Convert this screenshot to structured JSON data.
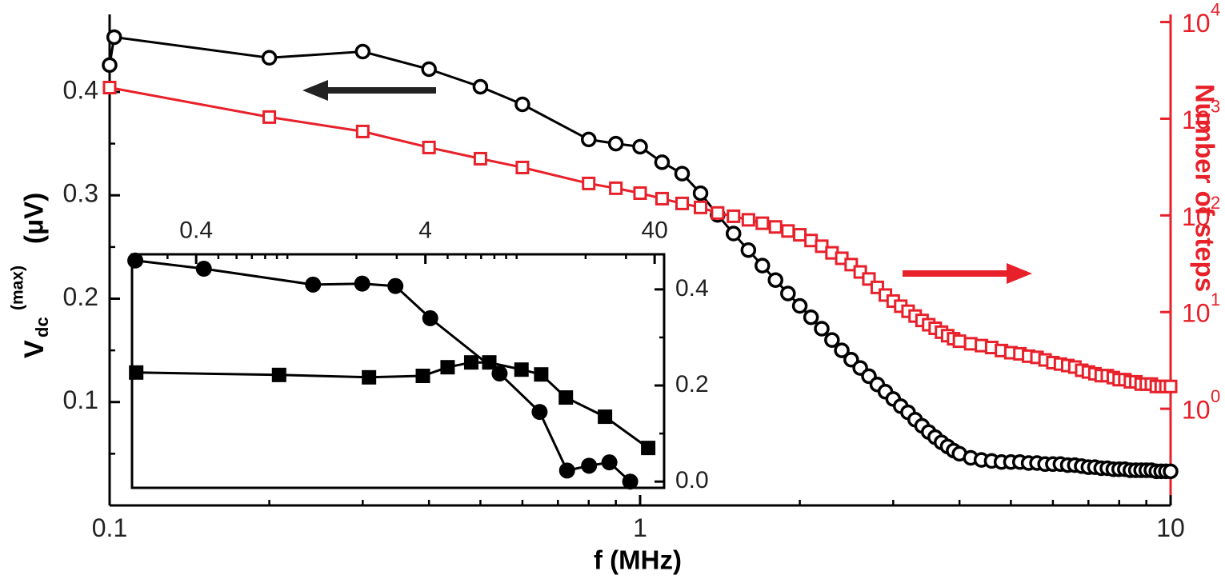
{
  "chart_data": [
    {
      "type": "line",
      "xlabel": "f (MHz)",
      "ylabel": {
        "main": "V",
        "sub": "dc",
        "sup": "(max)",
        "unit": "(μV)"
      },
      "y2label": "Number of steps",
      "xscale": "log",
      "xlim": [
        0.1,
        10
      ],
      "xticks": [
        0.1,
        1,
        10
      ],
      "xminor": [
        0.2,
        0.3,
        0.4,
        0.5,
        0.6,
        0.7,
        0.8,
        0.9,
        2,
        3,
        4,
        5,
        6,
        7,
        8,
        9
      ],
      "ylim": [
        0,
        0.475
      ],
      "yticks": [
        0.1,
        0.2,
        0.3,
        0.4
      ],
      "yminor": [
        0.05,
        0.15,
        0.25,
        0.35,
        0.45
      ],
      "y2scale": "log",
      "y2lim": [
        0.1,
        12000
      ],
      "y2ticks": [
        {
          "value": 1,
          "label": "10",
          "exponent": "0"
        },
        {
          "value": 10,
          "label": "10",
          "exponent": "1"
        },
        {
          "value": 100,
          "label": "10",
          "exponent": "2"
        },
        {
          "value": 1000,
          "label": "10",
          "exponent": "3"
        },
        {
          "value": 10000,
          "label": "10",
          "exponent": "4"
        }
      ],
      "series": [
        {
          "color": "#000000",
          "marker": "open-circle",
          "x": [
            0.1,
            0.102,
            0.2,
            0.3,
            0.4,
            0.5,
            0.6,
            0.8,
            0.9,
            1,
            1.1,
            1.2,
            1.3,
            1.4,
            1.5,
            1.6,
            1.7,
            1.8,
            1.9,
            2,
            2.1,
            2.2,
            2.3,
            2.4,
            2.5,
            2.6,
            2.7,
            2.8,
            2.9,
            3,
            3.1,
            3.2,
            3.3,
            3.4,
            3.5,
            3.6,
            3.7,
            3.8,
            3.9,
            4,
            4.2,
            4.4,
            4.6,
            4.8,
            5,
            5.2,
            5.4,
            5.6,
            5.8,
            6,
            6.2,
            6.4,
            6.6,
            6.8,
            7,
            7.2,
            7.4,
            7.6,
            7.8,
            8,
            8.2,
            8.4,
            8.6,
            8.8,
            9,
            9.2,
            9.4,
            9.6,
            9.8,
            10
          ],
          "values": [
            0.426,
            0.453,
            0.433,
            0.439,
            0.422,
            0.405,
            0.388,
            0.354,
            0.35,
            0.347,
            0.332,
            0.321,
            0.302,
            0.281,
            0.263,
            0.247,
            0.232,
            0.218,
            0.205,
            0.193,
            0.182,
            0.171,
            0.16,
            0.15,
            0.141,
            0.133,
            0.125,
            0.117,
            0.11,
            0.103,
            0.096,
            0.09,
            0.083,
            0.077,
            0.071,
            0.066,
            0.061,
            0.057,
            0.053,
            0.05,
            0.046,
            0.044,
            0.043,
            0.042,
            0.042,
            0.042,
            0.041,
            0.041,
            0.04,
            0.04,
            0.04,
            0.039,
            0.039,
            0.038,
            0.037,
            0.037,
            0.036,
            0.036,
            0.035,
            0.035,
            0.035,
            0.034,
            0.034,
            0.034,
            0.034,
            0.034,
            0.033,
            0.033,
            0.033,
            0.033
          ]
        },
        {
          "color": "#e8202a",
          "marker": "open-square",
          "axis": "y2",
          "x": [
            0.1,
            0.2,
            0.3,
            0.4,
            0.5,
            0.6,
            0.8,
            0.9,
            1,
            1.1,
            1.2,
            1.3,
            1.4,
            1.5,
            1.6,
            1.7,
            1.8,
            1.9,
            2,
            2.1,
            2.2,
            2.3,
            2.4,
            2.5,
            2.6,
            2.7,
            2.8,
            2.9,
            3,
            3.1,
            3.2,
            3.3,
            3.4,
            3.5,
            3.6,
            3.7,
            3.8,
            3.9,
            4,
            4.2,
            4.4,
            4.6,
            4.8,
            5,
            5.2,
            5.4,
            5.6,
            5.8,
            6,
            6.2,
            6.4,
            6.6,
            6.8,
            7,
            7.2,
            7.4,
            7.6,
            7.8,
            8,
            8.2,
            8.4,
            8.6,
            8.8,
            9,
            9.2,
            9.4,
            9.6,
            9.8,
            10
          ],
          "values": [
            2100,
            1040,
            738,
            504,
            386,
            313,
            214,
            191,
            170,
            149,
            133,
            121,
            106,
            98,
            90,
            83,
            76,
            69,
            63,
            55,
            48,
            41,
            36,
            31,
            26,
            22,
            18,
            15,
            13,
            11.5,
            10.2,
            9.1,
            8.2,
            7.4,
            6.8,
            6.2,
            5.7,
            5.3,
            5,
            4.7,
            4.5,
            4.3,
            4,
            3.8,
            3.7,
            3.5,
            3.4,
            3.2,
            3,
            2.9,
            2.8,
            2.7,
            2.5,
            2.4,
            2.3,
            2.2,
            2.2,
            2.1,
            2,
            2,
            1.9,
            1.9,
            1.8,
            1.8,
            1.8,
            1.7,
            1.7,
            1.7,
            1.7
          ]
        }
      ]
    },
    {
      "type": "line",
      "xscale": "log",
      "xaxis_position": "top",
      "xlim": [
        0.21,
        44
      ],
      "xticks": [
        0.4,
        4,
        40
      ],
      "xminor": [
        0.3,
        0.5,
        0.6,
        0.7,
        0.8,
        0.9,
        1,
        2,
        3,
        5,
        6,
        7,
        8,
        9,
        10,
        20,
        30
      ],
      "yaxis_position": "right",
      "ylim": [
        -0.013,
        0.473
      ],
      "yticks": [
        {
          "value": 0,
          "label": "0.0"
        },
        0.2,
        0.4
      ],
      "yminor": [
        0.1,
        0.3
      ],
      "series": [
        {
          "color": "#000000",
          "marker": "circle",
          "x": [
            0.217,
            0.432,
            1.294,
            2.12,
            2.96,
            4.2,
            8.43,
            12.6,
            16.6,
            20.7,
            25.4,
            31.3
          ],
          "values": [
            0.46,
            0.443,
            0.41,
            0.412,
            0.407,
            0.34,
            0.225,
            0.145,
            0.023,
            0.033,
            0.04,
            0
          ]
        },
        {
          "color": "#000000",
          "marker": "square",
          "x": [
            0.219,
            0.92,
            2.27,
            3.9,
            5,
            6.34,
            7.6,
            10.5,
            12.8,
            16.4,
            24.3,
            37.5
          ],
          "values": [
            0.227,
            0.222,
            0.217,
            0.22,
            0.238,
            0.248,
            0.248,
            0.233,
            0.223,
            0.175,
            0.135,
            0.07
          ]
        }
      ]
    }
  ]
}
